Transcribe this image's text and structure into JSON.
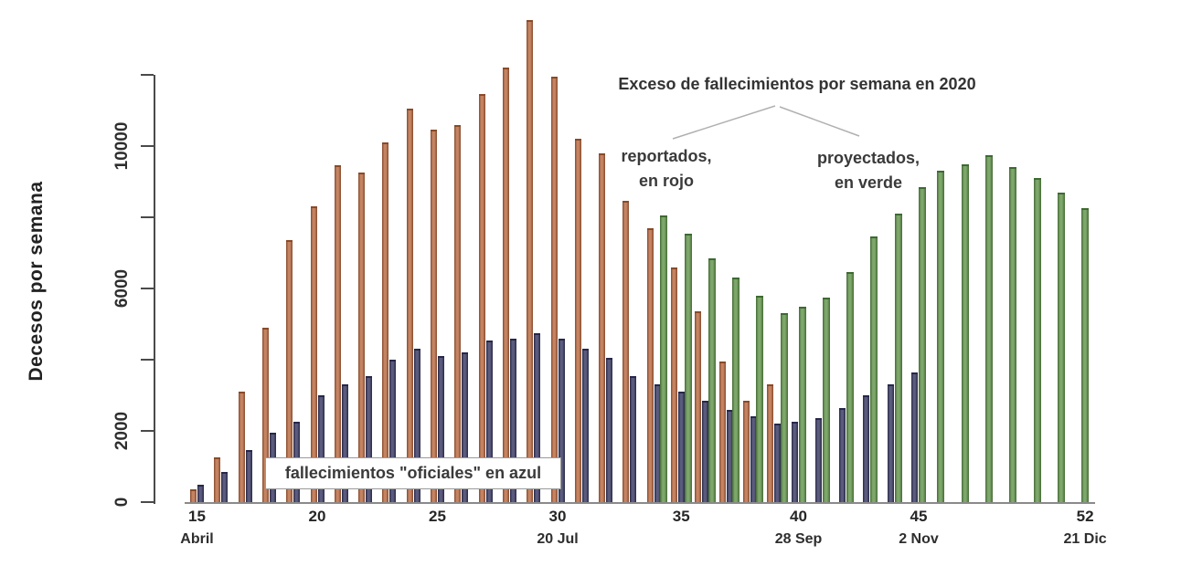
{
  "annotations": {
    "title": "Exceso de fallecimientos por semana en 2020",
    "reported": {
      "line1": "reportados,",
      "line2": "en rojo"
    },
    "projected": {
      "line1": "proyectados,",
      "line2": "en verde"
    },
    "official_box": "fallecimientos \"oficiales\" en azul"
  },
  "colors": {
    "reported_fill": "#b96940",
    "reported_edge": "#8a4a28",
    "official_fill": "#373862",
    "official_edge": "#26274a",
    "projected_fill": "#61954b",
    "projected_edge": "#3d6a31",
    "axis": "#4a4a4a",
    "connector_line": "#b0b0b0",
    "text": "#333333"
  },
  "chart_data": {
    "type": "bar",
    "title": "Exceso de fallecimientos por semana en 2020",
    "xlabel": "",
    "ylabel": "Decesos por semana",
    "ylim": [
      0,
      12000
    ],
    "grid": false,
    "legend_position": "inline-annotations",
    "y_ticks": [
      0,
      2000,
      4000,
      6000,
      8000,
      10000,
      12000
    ],
    "y_tick_labels": [
      {
        "value": 0,
        "label": "0"
      },
      {
        "value": 2000,
        "label": "2000"
      },
      {
        "value": 6000,
        "label": "6000"
      },
      {
        "value": 10000,
        "label": "10000"
      }
    ],
    "x_tick_labels": [
      {
        "week": 15,
        "label": "15",
        "sublabel": "Abril"
      },
      {
        "week": 20,
        "label": "20",
        "sublabel": ""
      },
      {
        "week": 25,
        "label": "25",
        "sublabel": ""
      },
      {
        "week": 30,
        "label": "30",
        "sublabel": "20 Jul"
      },
      {
        "week": 35,
        "label": "35",
        "sublabel": ""
      },
      {
        "week": 40,
        "label": "40",
        "sublabel": "28 Sep"
      },
      {
        "week": 45,
        "label": "45",
        "sublabel": "2 Nov"
      },
      {
        "week": 52,
        "label": "52",
        "sublabel": "21 Dic"
      }
    ],
    "categories": [
      15,
      16,
      17,
      18,
      19,
      20,
      21,
      22,
      23,
      24,
      25,
      26,
      27,
      28,
      29,
      30,
      31,
      32,
      33,
      34,
      35,
      36,
      37,
      38,
      39,
      40,
      41,
      42,
      43,
      44,
      45,
      46,
      47,
      48,
      49,
      50,
      51,
      52
    ],
    "series": [
      {
        "key": "reported",
        "name": "exceso de fallecimientos reportados (rojo)",
        "values": [
          350,
          1250,
          3100,
          4900,
          7350,
          8300,
          9450,
          9250,
          10100,
          11050,
          10450,
          10600,
          11450,
          12200,
          13550,
          11950,
          10200,
          9800,
          8450,
          7700,
          6600,
          5350,
          3950,
          2850,
          3300,
          null,
          null,
          null,
          null,
          null,
          null,
          null,
          null,
          null,
          null,
          null,
          null,
          null
        ]
      },
      {
        "key": "official",
        "name": "fallecimientos oficiales (azul)",
        "values": [
          500,
          850,
          1450,
          1950,
          2250,
          3000,
          3300,
          3550,
          4000,
          4300,
          4100,
          4200,
          4550,
          4600,
          4750,
          4600,
          4300,
          4050,
          3550,
          3300,
          3100,
          2850,
          2600,
          2400,
          2200,
          2250,
          2350,
          2650,
          3000,
          3300,
          3650,
          null,
          null,
          null,
          null,
          null,
          null,
          null
        ]
      },
      {
        "key": "projected",
        "name": "exceso de fallecimientos proyectados (verde)",
        "values": [
          null,
          null,
          null,
          null,
          null,
          null,
          null,
          null,
          null,
          null,
          null,
          null,
          null,
          null,
          null,
          null,
          null,
          null,
          null,
          8050,
          7550,
          6850,
          6300,
          5800,
          5300,
          5500,
          5750,
          6450,
          7450,
          8100,
          8850,
          9300,
          9500,
          9750,
          9400,
          9100,
          8700,
          8250
        ]
      }
    ]
  }
}
